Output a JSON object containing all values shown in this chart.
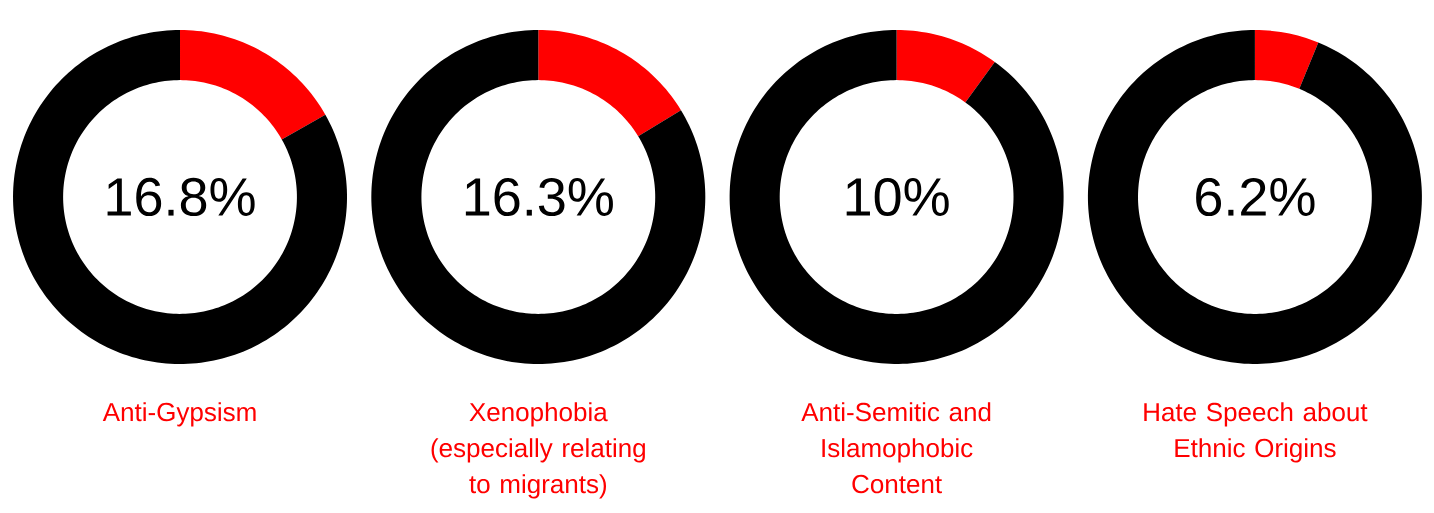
{
  "chart_data": [
    {
      "type": "donut",
      "title": "Anti-Gypsism",
      "categories": [
        null,
        null
      ],
      "values": [
        16.8,
        83.2
      ],
      "colors": [
        "#ff0000",
        "#000000"
      ],
      "annotations": [
        "16.8%"
      ]
    },
    {
      "type": "donut",
      "title": "Xenophobia (especially relating to migrants)",
      "categories": [
        null,
        null
      ],
      "values": [
        16.3,
        83.7
      ],
      "colors": [
        "#ff0000",
        "#000000"
      ],
      "annotations": [
        "16.3%"
      ]
    },
    {
      "type": "donut",
      "title": "Anti-Semitic and Islamophobic Content",
      "categories": [
        null,
        null
      ],
      "values": [
        10,
        90
      ],
      "colors": [
        "#ff0000",
        "#000000"
      ],
      "annotations": [
        "10%"
      ]
    },
    {
      "type": "donut",
      "title": "Hate Speech about Ethnic Origins",
      "categories": [
        null,
        null
      ],
      "values": [
        6.2,
        93.8
      ],
      "colors": [
        "#ff0000",
        "#000000"
      ],
      "annotations": [
        "6.2%"
      ]
    }
  ]
}
